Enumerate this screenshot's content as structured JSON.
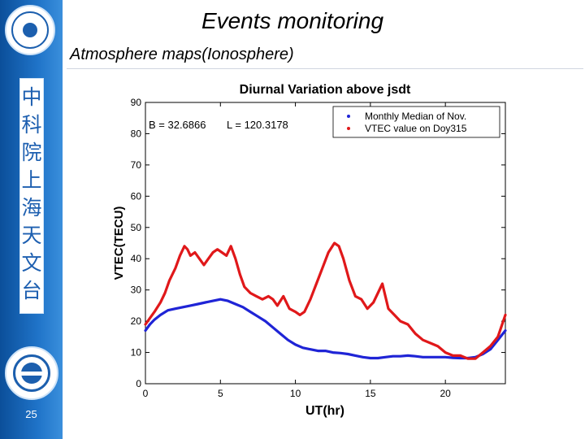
{
  "slide": {
    "title": "Events monitoring",
    "subtitle": "Atmosphere maps(Ionosphere)",
    "sidebar_text": "中科院上海天文台",
    "slide_number": "25",
    "colors": {
      "sidebar": "#1f73c8",
      "sidebar_text": "#1d5fb0"
    }
  },
  "chart_data": {
    "type": "line",
    "title": "Diurnal Variation above jsdt",
    "xlabel": "UT(hr)",
    "ylabel": "VTEC(TECU)",
    "xlim": [
      0,
      24
    ],
    "ylim": [
      0,
      90
    ],
    "xticks": [
      0,
      5,
      10,
      15,
      20
    ],
    "yticks": [
      0,
      10,
      20,
      30,
      40,
      50,
      60,
      70,
      80,
      90
    ],
    "annotation": {
      "b": "B = 32.6866",
      "l": "L = 120.3178"
    },
    "legend_position": "top-right",
    "series": [
      {
        "name": "Monthly Median of Nov.",
        "color": "#1f24d6",
        "x": [
          0,
          0.3,
          0.6,
          1,
          1.5,
          2,
          2.5,
          3,
          3.5,
          4,
          4.5,
          5,
          5.5,
          6,
          6.5,
          7,
          7.5,
          8,
          8.5,
          9,
          9.5,
          10,
          10.5,
          11,
          11.5,
          12,
          12.5,
          13,
          13.5,
          14,
          14.5,
          15,
          15.5,
          16,
          16.5,
          17,
          17.5,
          18,
          18.5,
          19,
          19.5,
          20,
          20.5,
          21,
          21.5,
          22,
          22.5,
          23,
          23.5,
          24
        ],
        "y": [
          17,
          19,
          20.5,
          22,
          23.5,
          24,
          24.5,
          25,
          25.5,
          26,
          26.5,
          27,
          26.5,
          25.5,
          24.5,
          23,
          21.5,
          20,
          18,
          16,
          14,
          12.5,
          11.5,
          11,
          10.5,
          10.5,
          10,
          9.8,
          9.5,
          9,
          8.5,
          8.2,
          8.2,
          8.5,
          8.8,
          8.8,
          9,
          8.8,
          8.5,
          8.5,
          8.5,
          8.5,
          8.3,
          8.2,
          8.2,
          8.5,
          9.5,
          11,
          14,
          17
        ]
      },
      {
        "name": "VTEC value on Doy315",
        "color": "#e0181a",
        "x": [
          0,
          0.3,
          0.6,
          1,
          1.3,
          1.6,
          2,
          2.3,
          2.6,
          2.8,
          3,
          3.3,
          3.6,
          3.9,
          4.2,
          4.5,
          4.8,
          5.1,
          5.4,
          5.7,
          6,
          6.3,
          6.6,
          7,
          7.4,
          7.8,
          8.2,
          8.5,
          8.8,
          9.2,
          9.6,
          10,
          10.3,
          10.6,
          11,
          11.4,
          11.8,
          12.2,
          12.6,
          12.9,
          13.2,
          13.6,
          14,
          14.4,
          14.8,
          15.2,
          15.5,
          15.8,
          16.2,
          16.6,
          17,
          17.5,
          18,
          18.5,
          19,
          19.5,
          20,
          20.5,
          21,
          21.5,
          22,
          22.5,
          23,
          23.5,
          24
        ],
        "y": [
          19,
          21,
          23,
          26,
          29,
          33,
          37,
          41,
          44,
          43,
          41,
          42,
          40,
          38,
          40,
          42,
          43,
          42,
          41,
          44,
          40,
          35,
          31,
          29,
          28,
          27,
          28,
          27,
          25,
          28,
          24,
          23,
          22,
          23,
          27,
          32,
          37,
          42,
          45,
          44,
          40,
          33,
          28,
          27,
          24,
          26,
          29,
          32,
          24,
          22,
          20,
          19,
          16,
          14,
          13,
          12,
          10,
          9,
          9,
          8,
          8,
          10,
          12,
          15,
          22
        ]
      }
    ]
  }
}
